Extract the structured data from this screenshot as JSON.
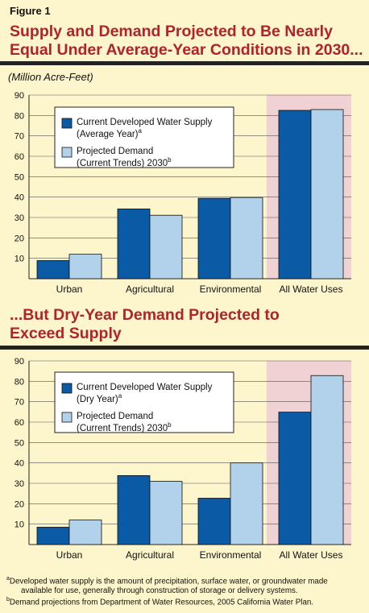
{
  "figure_label": "Figure 1",
  "chart1_title_line1": "Supply and Demand Projected to Be Nearly",
  "chart1_title_line2": "Equal Under Average-Year Conditions in 2030...",
  "units_label": "(Million Acre-Feet)",
  "chart2_title_line1": "...But Dry-Year Demand Projected to",
  "chart2_title_line2": "Exceed Supply",
  "footnote_a_marker": "a",
  "footnote_a_line1": "Developed water supply is the amount of precipitation, surface water, or groundwater made",
  "footnote_a_line2": "available for use, generally through construction of storage or delivery systems.",
  "footnote_b_marker": "b",
  "footnote_b_line1": "Demand projections from Department of Water Resources, 2005 California Water Plan.",
  "colors": {
    "supply": "#0a5aa5",
    "demand": "#b2d1ea",
    "highlight": "#f1d2d4",
    "title": "#b0232a",
    "background": "#fdf6cc"
  },
  "chart_data": [
    {
      "type": "bar",
      "categories": [
        "Urban",
        "Agricultural",
        "Environmental",
        "All Water Uses"
      ],
      "yticks": [
        "10",
        "20",
        "30",
        "40",
        "50",
        "60",
        "70",
        "80",
        "90"
      ],
      "ylim": [
        0,
        90
      ],
      "highlight_category": "All Water Uses",
      "legend_position": "top-left",
      "series": [
        {
          "name": "Current Developed Water Supply (Average Year)",
          "legend_line1": "Current Developed Water Supply",
          "legend_line2": "(Average Year)",
          "legend_sup": "a",
          "values": [
            8.9,
            34.2,
            39.4,
            82.5
          ]
        },
        {
          "name": "Projected Demand (Current Trends) 2030",
          "legend_line1": "Projected Demand",
          "legend_line2": "(Current Trends) 2030",
          "legend_sup": "b",
          "values": [
            12,
            31.1,
            39.8,
            82.9
          ]
        }
      ]
    },
    {
      "type": "bar",
      "categories": [
        "Urban",
        "Agricultural",
        "Environmental",
        "All Water Uses"
      ],
      "yticks": [
        "10",
        "20",
        "30",
        "40",
        "50",
        "60",
        "70",
        "80",
        "90"
      ],
      "ylim": [
        0,
        90
      ],
      "highlight_category": "All Water Uses",
      "legend_position": "top-left",
      "series": [
        {
          "name": "Current Developed Water Supply (Dry Year)",
          "legend_line1": "Current Developed Water Supply",
          "legend_line2": "(Dry Year)",
          "legend_sup": "a",
          "values": [
            8.5,
            33.8,
            22.7,
            64.9
          ]
        },
        {
          "name": "Projected Demand (Current Trends) 2030",
          "legend_line1": "Projected Demand",
          "legend_line2": "(Current Trends) 2030",
          "legend_sup": "b",
          "values": [
            12,
            31,
            40,
            82.8
          ]
        }
      ]
    }
  ]
}
